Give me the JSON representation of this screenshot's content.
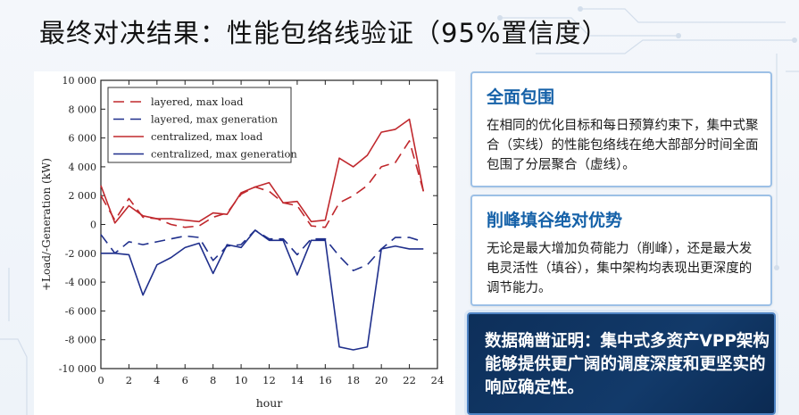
{
  "page": {
    "title": "最终对决结果：性能包络线验证（95%置信度）"
  },
  "cards": [
    {
      "title": "全面包围",
      "body": "在相同的优化目标和每日预算约束下，集中式聚合（实线）的性能包络线在绝大部部分时间全面包围了分层聚合（虚线）。"
    },
    {
      "title": "削峰填谷绝对优势",
      "body": "无论是最大增加负荷能力（削峰），还是最大发电灵活性（填谷），集中架构均表现出更深度的调节能力。"
    },
    {
      "title": "",
      "body": "数据确凿证明：集中式多资产VPP架构能够提供更广阔的调度深度和更坚实的响应确定性。"
    }
  ],
  "colors": {
    "load": "#c0282d",
    "generation": "#1f2f8c",
    "accent": "#1561a8",
    "dark_card": "#0d2f5a"
  },
  "chart_data": {
    "type": "line",
    "xlabel": "hour",
    "ylabel": "+Load/-Generation (kW)",
    "xlim": [
      0,
      24
    ],
    "ylim": [
      -10000,
      10000
    ],
    "x_ticks": [
      "0",
      "2",
      "4",
      "6",
      "8",
      "10",
      "12",
      "14",
      "16",
      "18",
      "20",
      "22",
      "24"
    ],
    "y_ticks": [
      "10 000",
      "8 000",
      "6 000",
      "4 000",
      "2 000",
      "0",
      "-2 000",
      "-4 000",
      "-6 000",
      "-8 000",
      "-10 000"
    ],
    "y_tick_values": [
      10000,
      8000,
      6000,
      4000,
      2000,
      0,
      -2000,
      -4000,
      -6000,
      -8000,
      -10000
    ],
    "x": [
      0,
      1,
      2,
      3,
      4,
      5,
      6,
      7,
      8,
      9,
      10,
      11,
      12,
      13,
      14,
      15,
      16,
      17,
      18,
      19,
      20,
      21,
      22,
      23
    ],
    "series": [
      {
        "name": "layered, max load",
        "style": "dashed",
        "color": "#c0282d",
        "values": [
          2000,
          300,
          1800,
          500,
          400,
          0,
          -200,
          -100,
          500,
          800,
          2100,
          2600,
          2300,
          1500,
          1300,
          -100,
          -200,
          1500,
          2000,
          2700,
          4000,
          4300,
          5800,
          2300
        ]
      },
      {
        "name": "layered, max generation",
        "style": "dashed",
        "color": "#1f2f8c",
        "values": [
          -700,
          -2000,
          -1200,
          -1400,
          -1200,
          -1000,
          -800,
          -900,
          -2500,
          -1500,
          -1400,
          -400,
          -1000,
          -1000,
          -2100,
          -1000,
          -1000,
          -2200,
          -3200,
          -2800,
          -1700,
          -900,
          -900,
          -1200
        ]
      },
      {
        "name": "centralized, max load",
        "style": "solid",
        "color": "#c0282d",
        "values": [
          2700,
          100,
          1300,
          600,
          400,
          400,
          300,
          200,
          800,
          700,
          2200,
          2600,
          2900,
          1500,
          1600,
          200,
          300,
          4600,
          4000,
          4800,
          6400,
          6600,
          7300,
          2300
        ]
      },
      {
        "name": "centralized, max generation",
        "style": "solid",
        "color": "#1f2f8c",
        "values": [
          -2000,
          -2000,
          -2100,
          -4900,
          -2800,
          -2300,
          -1600,
          -1300,
          -3400,
          -1400,
          -1600,
          -400,
          -1100,
          -1100,
          -3500,
          -1100,
          -1100,
          -8500,
          -8700,
          -8500,
          -1700,
          -1500,
          -1700,
          -1700
        ]
      }
    ]
  }
}
